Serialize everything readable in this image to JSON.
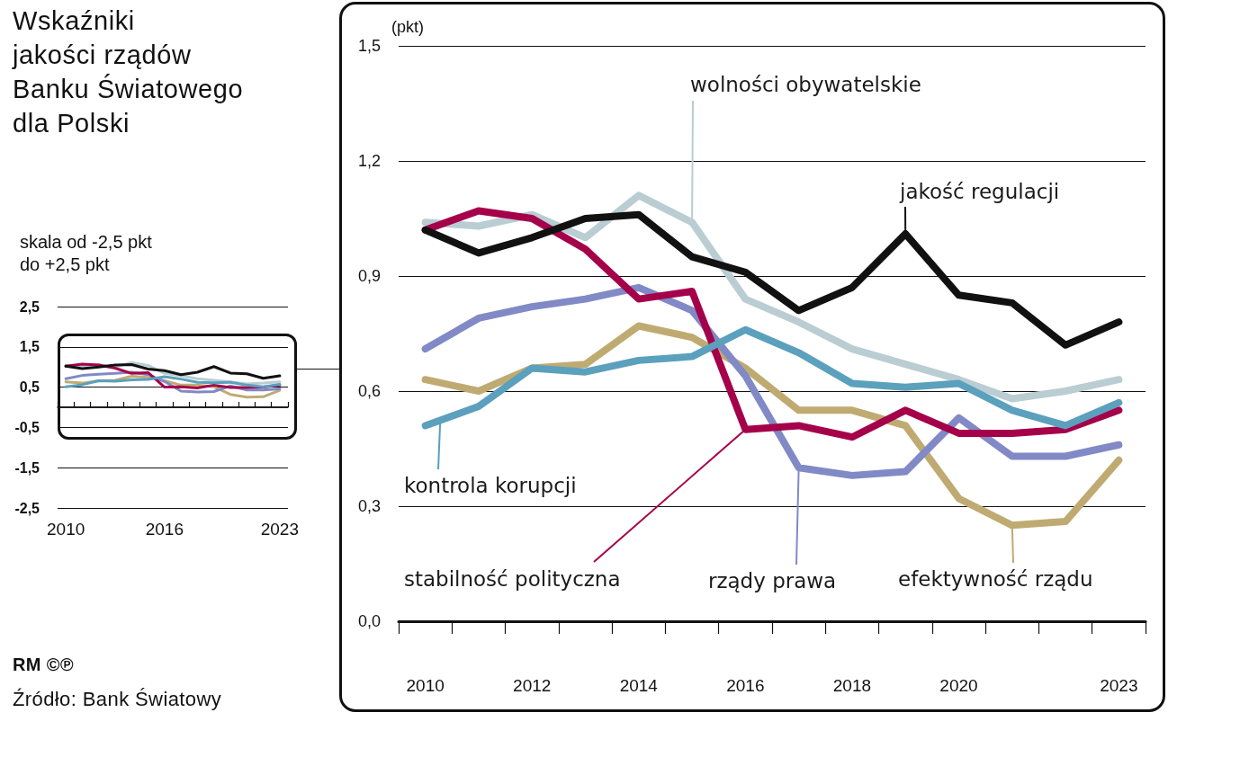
{
  "chart_data": [
    {
      "type": "line",
      "title": "Wskaźniki\njakości rządów\nBanku Światowego\ndla Polski",
      "subtitle": "skala od -2,5 pkt\ndo +2,5 pkt",
      "annotations": [
        "RM ©℗",
        "Źródło: Bank Światowy"
      ],
      "categories": [
        "2010",
        null,
        null,
        null,
        null,
        null,
        "2016",
        null,
        null,
        null,
        null,
        null,
        null,
        "2023"
      ],
      "series": [
        {
          "color": "#b9cdd2",
          "values": [
            1.04,
            1.03,
            1.06,
            1.0,
            1.11,
            1.04,
            0.84,
            0.78,
            0.71,
            0.67,
            0.63,
            0.58,
            0.6,
            0.63
          ]
        },
        {
          "color": "#bfab72",
          "values": [
            0.63,
            0.6,
            0.66,
            0.67,
            0.77,
            0.74,
            0.66,
            0.55,
            0.55,
            0.51,
            0.32,
            0.25,
            0.26,
            0.42
          ]
        },
        {
          "color": "#8189c6",
          "values": [
            0.71,
            0.79,
            0.82,
            0.84,
            0.87,
            0.81,
            0.64,
            0.4,
            0.38,
            0.39,
            0.53,
            0.43,
            0.43,
            0.46
          ]
        },
        {
          "color": "#a5004a",
          "values": [
            1.02,
            1.07,
            1.05,
            0.97,
            0.84,
            0.86,
            0.5,
            0.51,
            0.48,
            0.55,
            0.49,
            0.49,
            0.5,
            0.55
          ]
        },
        {
          "color": "#5ba0bd",
          "values": [
            0.51,
            0.56,
            0.66,
            0.65,
            0.68,
            0.69,
            0.76,
            0.7,
            0.62,
            0.61,
            0.62,
            0.55,
            0.51,
            0.57
          ]
        },
        {
          "color": "#111111",
          "values": [
            1.02,
            0.96,
            1.0,
            1.05,
            1.06,
            0.95,
            0.91,
            0.81,
            0.87,
            1.01,
            0.85,
            0.83,
            0.72,
            0.78
          ]
        }
      ],
      "ylim": [
        -2.5,
        2.5
      ],
      "yticks": [
        {
          "value": -2.5,
          "label": "-2,5"
        },
        {
          "value": -1.5,
          "label": "-1,5"
        },
        {
          "value": -0.5,
          "label": "-0,5"
        },
        {
          "value": 0.5,
          "label": "0,5"
        },
        {
          "value": 1.5,
          "label": "1,5"
        },
        {
          "value": 2.5,
          "label": "2,5"
        }
      ],
      "ref_lines": [
        {
          "axis": "y",
          "value": 0,
          "color": "#111111"
        }
      ],
      "grid": "y"
    },
    {
      "type": "line",
      "ylabel": "(pkt)",
      "categories": [
        "2010",
        null,
        "2012",
        null,
        "2014",
        null,
        "2016",
        null,
        "2018",
        null,
        "2020",
        null,
        null,
        "2023"
      ],
      "series": [
        {
          "name": "wolności obywatelskie",
          "color": "#b9cdd2",
          "values": [
            1.04,
            1.03,
            1.06,
            1.0,
            1.11,
            1.04,
            0.84,
            0.78,
            0.71,
            0.67,
            0.63,
            0.58,
            0.6,
            0.63
          ]
        },
        {
          "name": "efektywność rządu",
          "color": "#bfab72",
          "values": [
            0.63,
            0.6,
            0.66,
            0.67,
            0.77,
            0.74,
            0.66,
            0.55,
            0.55,
            0.51,
            0.32,
            0.25,
            0.26,
            0.42
          ]
        },
        {
          "name": "rządy prawa",
          "color": "#8189c6",
          "values": [
            0.71,
            0.79,
            0.82,
            0.84,
            0.87,
            0.81,
            0.64,
            0.4,
            0.38,
            0.39,
            0.53,
            0.43,
            0.43,
            0.46
          ]
        },
        {
          "name": "stabilność polityczna",
          "color": "#a5004a",
          "values": [
            1.02,
            1.07,
            1.05,
            0.97,
            0.84,
            0.86,
            0.5,
            0.51,
            0.48,
            0.55,
            0.49,
            0.49,
            0.5,
            0.55
          ]
        },
        {
          "name": "kontrola korupcji",
          "color": "#5ba0bd",
          "values": [
            0.51,
            0.56,
            0.66,
            0.65,
            0.68,
            0.69,
            0.76,
            0.7,
            0.62,
            0.61,
            0.62,
            0.55,
            0.51,
            0.57
          ]
        },
        {
          "name": "jakość regulacji",
          "color": "#111111",
          "values": [
            1.02,
            0.96,
            1.0,
            1.05,
            1.06,
            0.95,
            0.91,
            0.81,
            0.87,
            1.01,
            0.85,
            0.83,
            0.72,
            0.78
          ]
        }
      ],
      "ylim": [
        0,
        1.5
      ],
      "yticks": [
        {
          "value": 0,
          "label": "0,0"
        },
        {
          "value": 0.3,
          "label": "0,3"
        },
        {
          "value": 0.6,
          "label": "0,6"
        },
        {
          "value": 0.9,
          "label": "0,9"
        },
        {
          "value": 1.2,
          "label": "1,2"
        },
        {
          "value": 1.5,
          "label": "1,5"
        }
      ],
      "grid": "y",
      "legend": "bottom"
    }
  ]
}
